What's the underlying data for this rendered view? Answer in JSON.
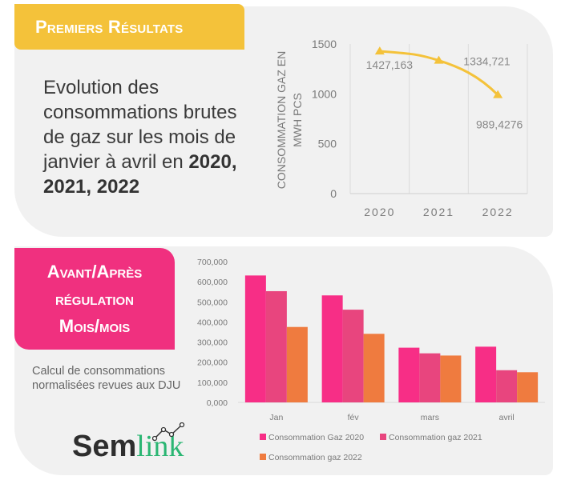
{
  "top": {
    "banner": "Premiers Résultats",
    "intro_text": "Evolution des consommations brutes de gaz sur les mois de janvier à avril en ",
    "intro_bold": "2020, 2021, 2022"
  },
  "bottom": {
    "banner_lines": [
      "Avant/Après",
      "régulation",
      "Mois/mois"
    ],
    "description": "Calcul de consommations normalisées revues aux DJU"
  },
  "logo": {
    "part1": "Sem",
    "part2": "link",
    "icon": "line-chart-logo-icon"
  },
  "colors": {
    "yellow": "#f4c23a",
    "pink": "#f0307f",
    "s2020": "#f72e86",
    "s2021": "#e8457e",
    "s2022": "#ef7b3f",
    "logo_green": "#2bb673"
  },
  "chart_data": [
    {
      "type": "line",
      "title": "",
      "xlabel": "",
      "ylabel_lines": [
        "CONSOMMATION GAZ EN",
        "MWH PCS"
      ],
      "categories": [
        "2020",
        "2021",
        "2022"
      ],
      "values": [
        1427.163,
        1334.721,
        989.4276
      ],
      "data_labels": [
        "1427,163",
        "1334,721",
        "989,4276"
      ],
      "ylim": [
        0,
        1500
      ],
      "yticks": [
        "0",
        "500",
        "1000",
        "1500"
      ],
      "grid": "vertical",
      "color": "#f4c23a"
    },
    {
      "type": "bar",
      "categories": [
        "Jan",
        "fév",
        "mars",
        "avril"
      ],
      "series": [
        {
          "name": "Consommation Gaz 2020",
          "values": [
            631000,
            532000,
            272000,
            277000
          ],
          "color": "#f72e86"
        },
        {
          "name": "Consommation gaz 2021",
          "values": [
            553000,
            461000,
            244000,
            160000
          ],
          "color": "#e8457e"
        },
        {
          "name": "Consommation gaz 2022",
          "values": [
            375000,
            341000,
            233000,
            150000
          ],
          "color": "#ef7b3f"
        }
      ],
      "ylim": [
        0,
        700000
      ],
      "yticks": [
        "0,000",
        "100,000",
        "200,000",
        "300,000",
        "400,000",
        "500,000",
        "600,000",
        "700,000"
      ],
      "legend": "bottom"
    }
  ]
}
